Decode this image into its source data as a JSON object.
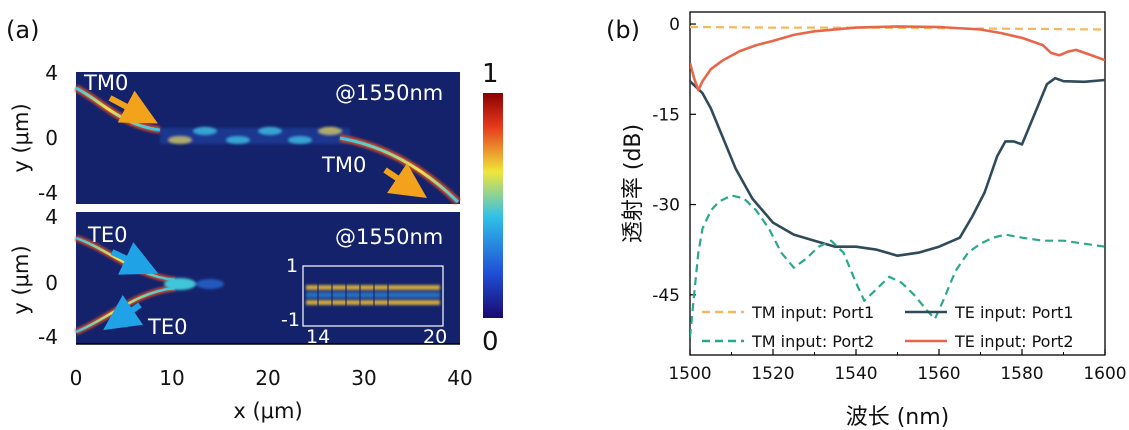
{
  "panels": {
    "a": {
      "label": "(a)",
      "xlabel": "x (μm)",
      "ylabel": "y (μm)",
      "xticks": [
        "0",
        "10",
        "20",
        "30",
        "40"
      ],
      "yticks_top": [
        "4",
        "0",
        "-4"
      ],
      "yticks_bottom": [
        "4",
        "0",
        "-4"
      ],
      "top": {
        "wavelength": "@1550nm",
        "annotations": [
          "TM0",
          "TM0"
        ],
        "arrow_color": "#f2a31b"
      },
      "bottom": {
        "wavelength": "@1550nm",
        "annotations": [
          "TE0",
          "TE0"
        ],
        "arrow_color": "#1fa3e6",
        "inset": {
          "yticks": [
            "1",
            "-1"
          ],
          "xticks": [
            "14",
            "20"
          ]
        }
      },
      "colorbar": {
        "max": "1",
        "min": "0"
      },
      "colors": {
        "background": "#13226b",
        "colorbar_stops": [
          "#1a0a6e",
          "#1f4fd6",
          "#30c0e8",
          "#f0e63a",
          "#e53a1c",
          "#8b0000"
        ]
      }
    },
    "b": {
      "label": "(b)",
      "chart_data": {
        "type": "line",
        "xlabel": "波长 (nm)",
        "ylabel": "透射率 (dB)",
        "xlim": [
          1500,
          1600
        ],
        "ylim": [
          -55,
          2
        ],
        "xticks": [
          1500,
          1520,
          1540,
          1560,
          1580,
          1600
        ],
        "yticks": [
          0,
          -15,
          -30,
          -45
        ],
        "xtick_labels": [
          "1500",
          "1520",
          "1540",
          "1560",
          "1580",
          "1600"
        ],
        "ytick_labels": [
          "0",
          "-15",
          "-30",
          "-45"
        ],
        "legend_position": "bottom",
        "series": [
          {
            "name": "TM input: Port1",
            "color": "#f5b85c",
            "dash": true,
            "x": [
              1500,
              1520,
              1540,
              1560,
              1580,
              1600
            ],
            "y": [
              -0.5,
              -0.6,
              -0.6,
              -0.7,
              -0.8,
              -0.9
            ]
          },
          {
            "name": "TE input: Port1",
            "color": "#2f4b5b",
            "dash": false,
            "x": [
              1500,
              1503,
              1505,
              1508,
              1511,
              1515,
              1520,
              1525,
              1530,
              1535,
              1540,
              1545,
              1550,
              1555,
              1560,
              1565,
              1568,
              1571,
              1574,
              1576,
              1578,
              1580,
              1583,
              1586,
              1588,
              1590,
              1595,
              1600
            ],
            "y": [
              -9.5,
              -11.5,
              -14,
              -19,
              -24,
              -29,
              -33,
              -35,
              -36,
              -37,
              -37,
              -37.5,
              -38.5,
              -38,
              -37,
              -35.5,
              -32,
              -28,
              -22,
              -19.5,
              -19.5,
              -20,
              -15,
              -10,
              -9,
              -9.5,
              -9.6,
              -9.3
            ]
          },
          {
            "name": "TM input: Port2",
            "color": "#2aa88e",
            "dash": true,
            "x": [
              1500,
              1501,
              1502,
              1503,
              1505,
              1507,
              1510,
              1513,
              1516,
              1519,
              1522,
              1525,
              1528,
              1531,
              1534,
              1537,
              1540,
              1542,
              1545,
              1548,
              1551,
              1554,
              1557,
              1559,
              1561,
              1564,
              1567,
              1570,
              1573,
              1576,
              1580,
              1585,
              1590,
              1595,
              1600
            ],
            "y": [
              -52,
              -45,
              -38,
              -34,
              -31,
              -29.5,
              -28.5,
              -29,
              -31,
              -34,
              -38,
              -40.5,
              -39,
              -37,
              -36,
              -38,
              -43,
              -46,
              -44,
              -42,
              -43,
              -45,
              -47.5,
              -49,
              -46,
              -41,
              -38,
              -36.5,
              -35.5,
              -35,
              -35.5,
              -36,
              -36,
              -36.5,
              -37
            ]
          },
          {
            "name": "TE input: Port2",
            "color": "#e8674a",
            "dash": false,
            "x": [
              1500,
              1501,
              1502,
              1503,
              1505,
              1508,
              1512,
              1516,
              1520,
              1525,
              1530,
              1540,
              1550,
              1560,
              1570,
              1575,
              1580,
              1585,
              1587,
              1589,
              1591,
              1593,
              1596,
              1600
            ],
            "y": [
              -6.5,
              -9,
              -11,
              -9.5,
              -7.5,
              -6,
              -4.5,
              -3.5,
              -2.8,
              -1.8,
              -1.2,
              -0.6,
              -0.4,
              -0.5,
              -0.9,
              -1.5,
              -2.3,
              -3.5,
              -4.8,
              -5.2,
              -4.6,
              -4.3,
              -5,
              -6
            ]
          }
        ]
      }
    }
  }
}
